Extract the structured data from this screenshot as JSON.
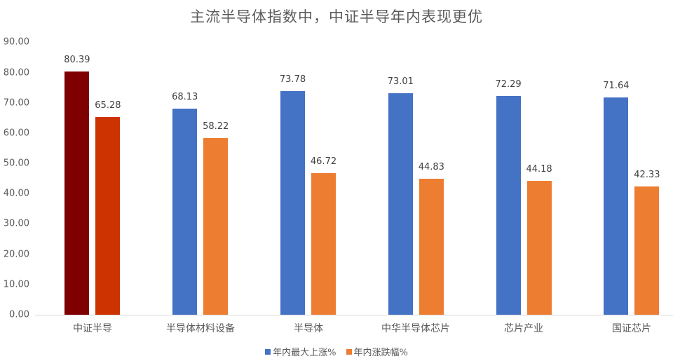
{
  "chart_data": {
    "type": "bar",
    "title": "主流半导体指数中，中证半导年内表现更优",
    "xlabel": "",
    "ylabel": "",
    "ylim": [
      0,
      90
    ],
    "yticks": [
      "0.00",
      "10.00",
      "20.00",
      "30.00",
      "40.00",
      "50.00",
      "60.00",
      "70.00",
      "80.00",
      "90.00"
    ],
    "grid": false,
    "legend_position": "bottom",
    "categories": [
      "中证半导",
      "半导体材料设备",
      "半导体",
      "中华半导体芯片",
      "芯片产业",
      "国证芯片"
    ],
    "series": [
      {
        "name": "年内最大上涨%",
        "color": "#4472c4",
        "highlight_color": "#7f0000",
        "values": [
          80.39,
          68.13,
          73.78,
          73.01,
          72.29,
          71.64
        ]
      },
      {
        "name": "年内涨跌幅%",
        "color": "#ed7d31",
        "highlight_color": "#cc3300",
        "values": [
          65.28,
          58.22,
          46.72,
          44.83,
          44.18,
          42.33
        ]
      }
    ],
    "highlighted_category_index": 0
  },
  "labels": {
    "title": "主流半导体指数中，中证半导年内表现更优",
    "yticks": [
      "0.00",
      "10.00",
      "20.00",
      "30.00",
      "40.00",
      "50.00",
      "60.00",
      "70.00",
      "80.00",
      "90.00"
    ],
    "categories": [
      "中证半导",
      "半导体材料设备",
      "半导体",
      "中华半导体芯片",
      "芯片产业",
      "国证芯片"
    ],
    "s1": [
      "80.39",
      "68.13",
      "73.78",
      "73.01",
      "72.29",
      "71.64"
    ],
    "s2": [
      "65.28",
      "58.22",
      "46.72",
      "44.83",
      "44.18",
      "42.33"
    ],
    "legend": [
      "年内最大上涨%",
      "年内涨跌幅%"
    ]
  }
}
